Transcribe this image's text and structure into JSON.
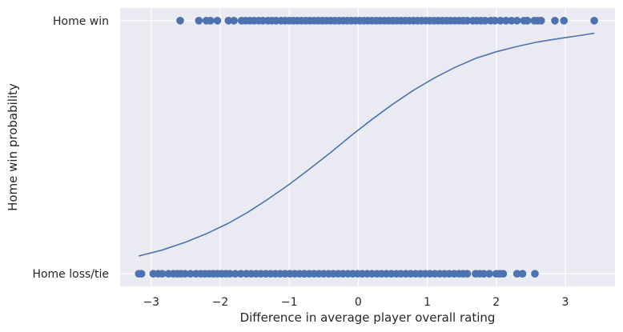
{
  "chart_data": {
    "type": "scatter",
    "xlabel": "Difference in average player overall rating",
    "ylabel": "Home win probability",
    "xlim": [
      -3.45,
      3.72
    ],
    "ylim": [
      -0.05,
      1.05
    ],
    "grid": true,
    "x_ticks": [
      -3,
      -2,
      -1,
      0,
      1,
      2,
      3
    ],
    "x_tick_labels": [
      "−3",
      "−2",
      "−1",
      "0",
      "1",
      "2",
      "3"
    ],
    "y_ticks": [
      0,
      1
    ],
    "y_tick_labels": [
      "Home loss/tie",
      "Home win"
    ],
    "colors": {
      "background": "#eaeaf2",
      "grid": "#ffffff",
      "marker": "#4c72b0",
      "line": "#4c72b0"
    },
    "series": [
      {
        "kind": "scatter",
        "y": 1,
        "x": [
          -2.58,
          -2.31,
          -2.2,
          -2.14,
          -2.04,
          -1.88,
          -1.8,
          -1.69,
          -1.63,
          -1.57,
          -1.51,
          -1.44,
          -1.38,
          -1.31,
          -1.25,
          -1.19,
          -1.12,
          -1.06,
          -1.0,
          -0.94,
          -0.88,
          -0.82,
          -0.76,
          -0.7,
          -0.64,
          -0.58,
          -0.52,
          -0.46,
          -0.4,
          -0.34,
          -0.28,
          -0.22,
          -0.16,
          -0.1,
          -0.04,
          0.02,
          0.08,
          0.14,
          0.2,
          0.26,
          0.32,
          0.38,
          0.44,
          0.5,
          0.56,
          0.62,
          0.68,
          0.74,
          0.8,
          0.86,
          0.92,
          0.98,
          1.04,
          1.1,
          1.16,
          1.22,
          1.28,
          1.34,
          1.4,
          1.46,
          1.52,
          1.58,
          1.66,
          1.72,
          1.78,
          1.84,
          1.92,
          1.98,
          2.06,
          2.14,
          2.22,
          2.3,
          2.4,
          2.45,
          2.55,
          2.6,
          2.65,
          2.85,
          2.98,
          3.42
        ]
      },
      {
        "kind": "scatter",
        "y": 0,
        "x": [
          -3.18,
          -3.14,
          -2.97,
          -2.9,
          -2.84,
          -2.75,
          -2.68,
          -2.62,
          -2.57,
          -2.51,
          -2.43,
          -2.35,
          -2.28,
          -2.22,
          -2.16,
          -2.1,
          -2.04,
          -1.98,
          -1.92,
          -1.86,
          -1.78,
          -1.7,
          -1.62,
          -1.55,
          -1.48,
          -1.41,
          -1.34,
          -1.27,
          -1.2,
          -1.13,
          -1.06,
          -0.99,
          -0.92,
          -0.85,
          -0.78,
          -0.71,
          -0.64,
          -0.57,
          -0.5,
          -0.43,
          -0.36,
          -0.29,
          -0.22,
          -0.15,
          -0.08,
          -0.01,
          0.06,
          0.13,
          0.2,
          0.27,
          0.34,
          0.41,
          0.48,
          0.55,
          0.62,
          0.69,
          0.76,
          0.83,
          0.9,
          0.97,
          1.04,
          1.11,
          1.18,
          1.25,
          1.32,
          1.39,
          1.46,
          1.52,
          1.58,
          1.7,
          1.76,
          1.82,
          1.9,
          2.0,
          2.05,
          2.1,
          2.3,
          2.38,
          2.56
        ]
      },
      {
        "kind": "line",
        "x": [
          -3.18,
          -2.85,
          -2.5,
          -2.2,
          -1.9,
          -1.6,
          -1.3,
          -1.0,
          -0.7,
          -0.4,
          -0.1,
          0.2,
          0.5,
          0.8,
          1.1,
          1.4,
          1.7,
          2.0,
          2.3,
          2.6,
          2.9,
          3.2,
          3.42
        ],
        "y": [
          0.07,
          0.093,
          0.125,
          0.158,
          0.197,
          0.243,
          0.296,
          0.353,
          0.415,
          0.479,
          0.546,
          0.61,
          0.67,
          0.725,
          0.773,
          0.815,
          0.851,
          0.877,
          0.898,
          0.916,
          0.929,
          0.941,
          0.95
        ]
      }
    ]
  }
}
